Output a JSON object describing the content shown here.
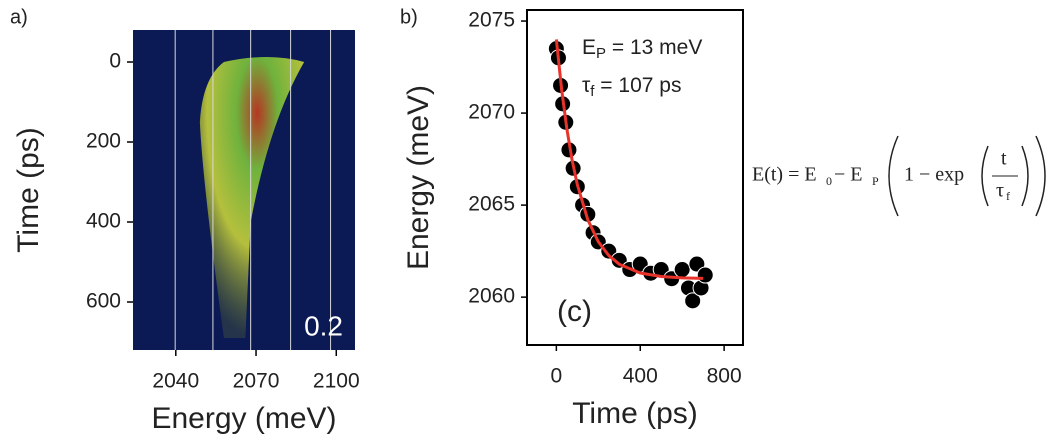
{
  "chart_data": [
    {
      "type": "image",
      "panel_label": "a)",
      "xlabel": "Energy (meV)",
      "ylabel": "Time (ps)",
      "xlim": [
        2024,
        2107
      ],
      "xticks": [
        2040,
        2070,
        2100
      ],
      "ylim": [
        720,
        -80
      ],
      "yticks": [
        0,
        200,
        400,
        600
      ],
      "annotation": "0.2",
      "background": "#0b1a55"
    },
    {
      "type": "scatter",
      "panel_label": "b)",
      "xlabel": "Time (ps)",
      "ylabel": "Energy (meV)",
      "xlim": [
        -140,
        890
      ],
      "xticks": [
        0,
        400,
        800
      ],
      "ylim": [
        2057.4,
        2075.6
      ],
      "yticks": [
        2060,
        2065,
        2070,
        2075
      ],
      "annotation": "(c)",
      "params": [
        {
          "base": "E",
          "sub": "P",
          "rest": " = 13 meV"
        },
        {
          "base": "τ",
          "sub": "f",
          "rest": " = 107 ps"
        }
      ],
      "series": [
        {
          "type": "scatter",
          "color": "#000000",
          "x": [
            0,
            10,
            20,
            30,
            45,
            60,
            80,
            100,
            125,
            150,
            175,
            200,
            250,
            300,
            350,
            400,
            450,
            500,
            550,
            600,
            630,
            650,
            670,
            690,
            710
          ],
          "values": [
            2073.5,
            2073,
            2071.5,
            2070.5,
            2069.5,
            2068,
            2067,
            2066,
            2065,
            2064.5,
            2063.5,
            2063,
            2062.5,
            2062,
            2061.5,
            2061.8,
            2061.3,
            2061.5,
            2061,
            2061.5,
            2060.5,
            2059.8,
            2061.8,
            2060.5,
            2061.2
          ]
        },
        {
          "type": "line",
          "color": "#e8322a",
          "x": [
            0,
            25,
            50,
            75,
            100,
            150,
            200,
            250,
            300,
            400,
            500,
            600,
            700
          ],
          "values": [
            2074,
            2071.29,
            2069.15,
            2067.45,
            2066.11,
            2064.2,
            2063.01,
            2062.26,
            2061.79,
            2061.31,
            2061.12,
            2061.05,
            2061.02
          ]
        }
      ]
    }
  ],
  "equation": {
    "lhs": "E(t) = E",
    "e0_sub": "0",
    "minus": " − E",
    "ep_sub": "P",
    "one": "1 − exp",
    "num": "t",
    "den": "τ",
    "den_sub": "f"
  }
}
